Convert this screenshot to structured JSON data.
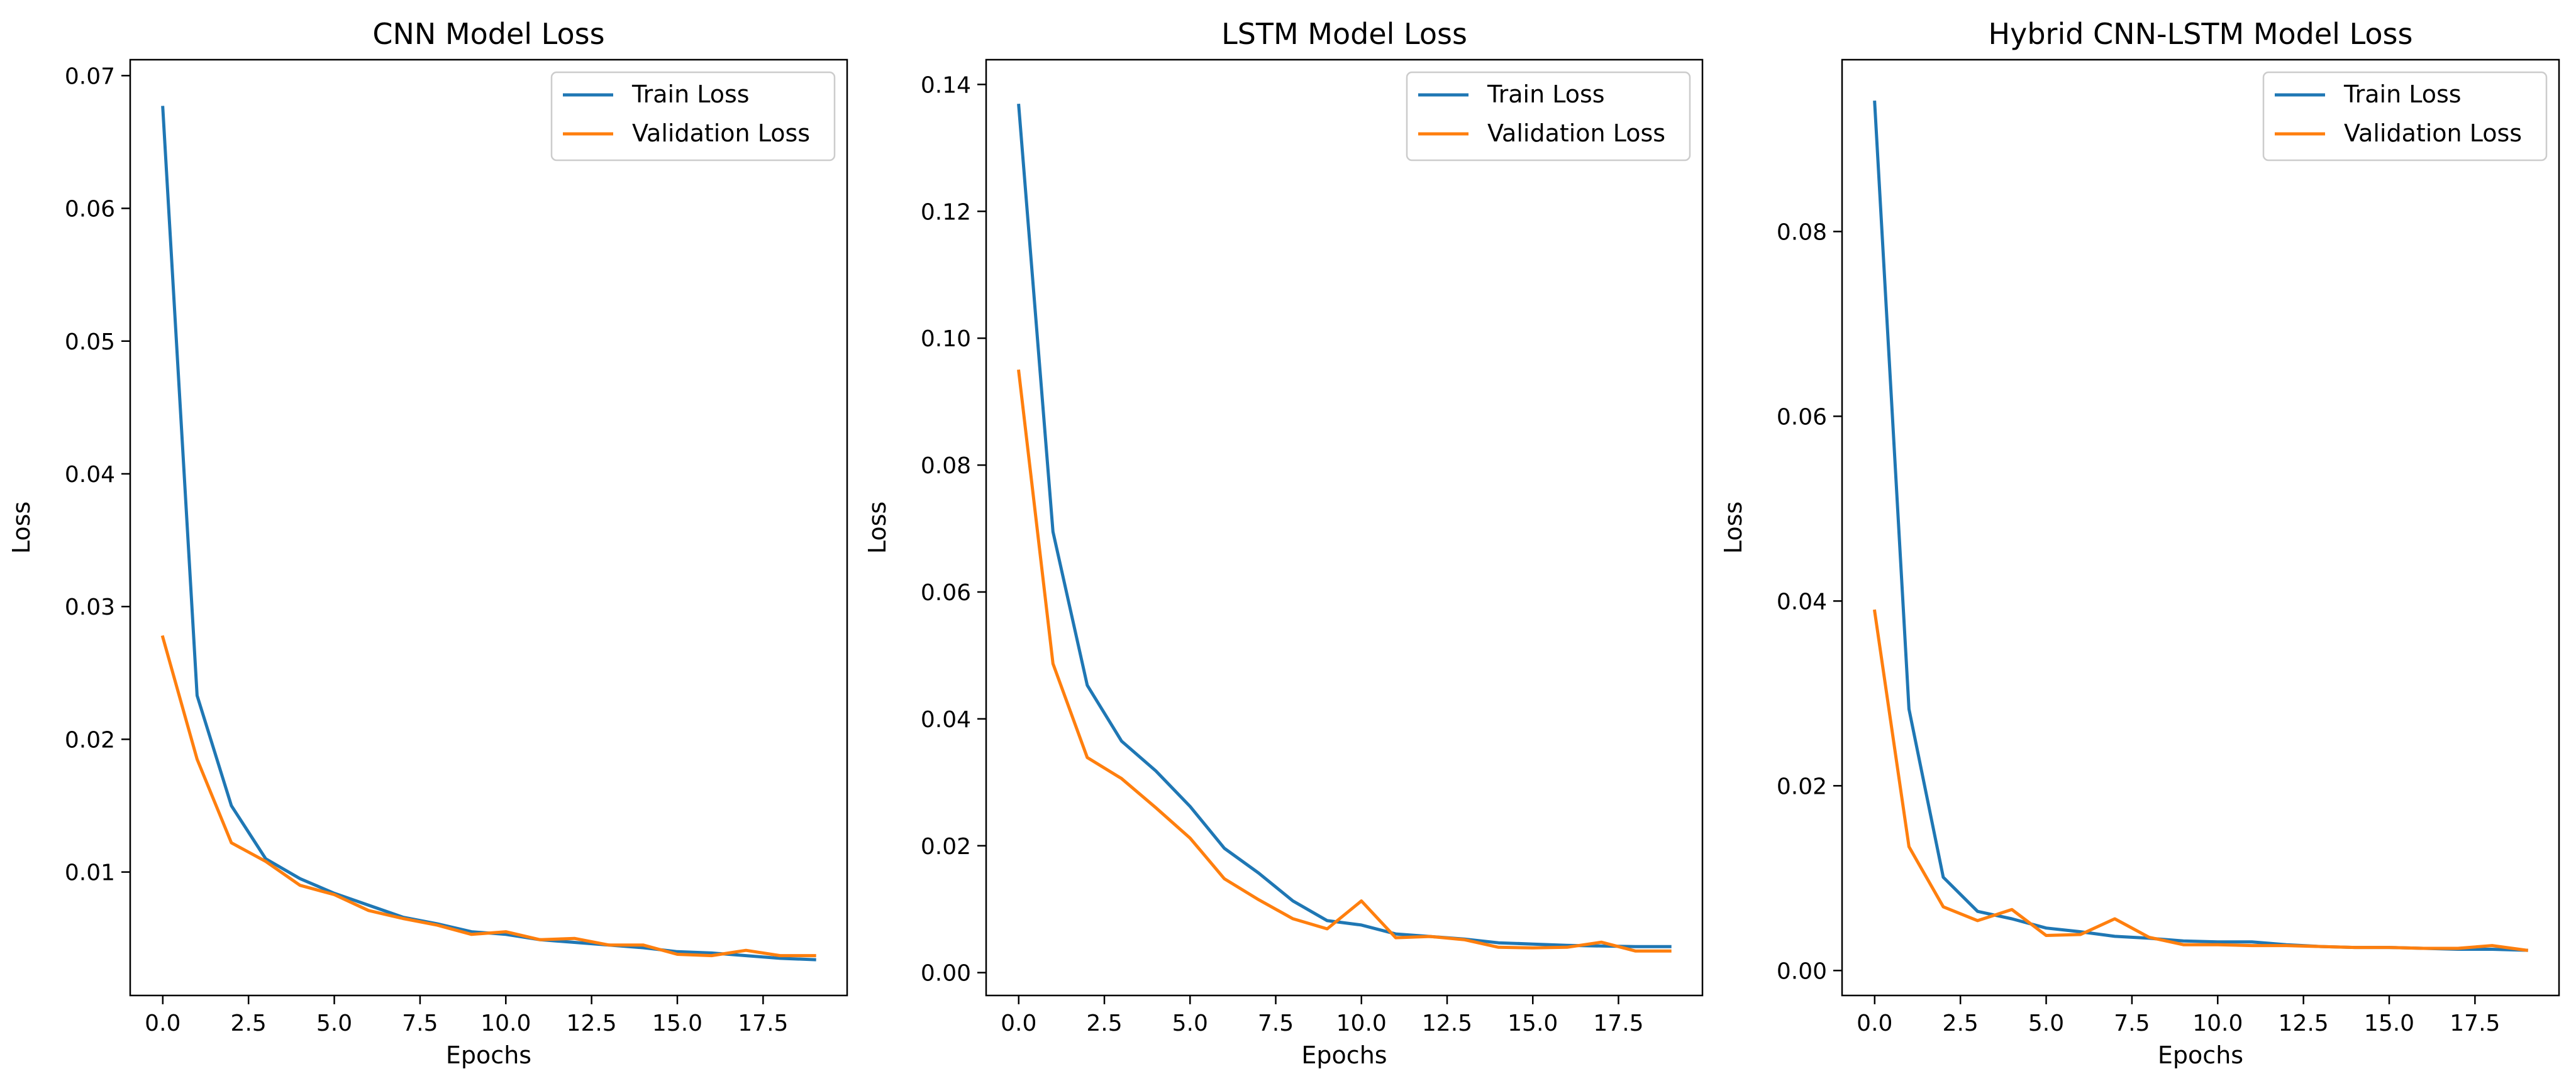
{
  "colors": {
    "train": "#1f77b4",
    "validation": "#ff7f0e"
  },
  "chart_data": [
    {
      "type": "line",
      "title": "CNN Model Loss",
      "xlabel": "Epochs",
      "ylabel": "Loss",
      "xlim": [
        -0.95,
        19.95
      ],
      "ylim": [
        0.0007,
        0.0712
      ],
      "xticks": [
        "0.0",
        "2.5",
        "5.0",
        "7.5",
        "10.0",
        "12.5",
        "15.0",
        "17.5"
      ],
      "xtick_values": [
        0,
        2.5,
        5,
        7.5,
        10,
        12.5,
        15,
        17.5
      ],
      "yticks": [
        "0.01",
        "0.02",
        "0.03",
        "0.04",
        "0.05",
        "0.06",
        "0.07"
      ],
      "ytick_values": [
        0.01,
        0.02,
        0.03,
        0.04,
        0.05,
        0.06,
        0.07
      ],
      "grid": false,
      "legend_position": "top-right",
      "x": [
        0,
        1,
        2,
        3,
        4,
        5,
        6,
        7,
        8,
        9,
        10,
        11,
        12,
        13,
        14,
        15,
        16,
        17,
        18,
        19
      ],
      "series": [
        {
          "name": "Train Loss",
          "color": "#1f77b4",
          "values": [
            0.0676,
            0.0233,
            0.015,
            0.011,
            0.0095,
            0.0084,
            0.0075,
            0.0066,
            0.0061,
            0.0055,
            0.0053,
            0.0049,
            0.0047,
            0.0045,
            0.0043,
            0.004,
            0.0039,
            0.0037,
            0.0035,
            0.0034
          ]
        },
        {
          "name": "Validation Loss",
          "color": "#ff7f0e",
          "values": [
            0.0277,
            0.0185,
            0.0122,
            0.0108,
            0.009,
            0.0083,
            0.0071,
            0.0065,
            0.006,
            0.0053,
            0.0055,
            0.0049,
            0.005,
            0.0045,
            0.0045,
            0.0038,
            0.0037,
            0.0041,
            0.0037,
            0.0037
          ]
        }
      ]
    },
    {
      "type": "line",
      "title": "LSTM Model Loss",
      "xlabel": "Epochs",
      "ylabel": "Loss",
      "xlim": [
        -0.95,
        19.95
      ],
      "ylim": [
        -0.0036,
        0.1439
      ],
      "xticks": [
        "0.0",
        "2.5",
        "5.0",
        "7.5",
        "10.0",
        "12.5",
        "15.0",
        "17.5"
      ],
      "xtick_values": [
        0,
        2.5,
        5,
        7.5,
        10,
        12.5,
        15,
        17.5
      ],
      "yticks": [
        "0.00",
        "0.02",
        "0.04",
        "0.06",
        "0.08",
        "0.10",
        "0.12",
        "0.14"
      ],
      "ytick_values": [
        0,
        0.02,
        0.04,
        0.06,
        0.08,
        0.1,
        0.12,
        0.14
      ],
      "grid": false,
      "legend_position": "top-right",
      "x": [
        0,
        1,
        2,
        3,
        4,
        5,
        6,
        7,
        8,
        9,
        10,
        11,
        12,
        13,
        14,
        15,
        16,
        17,
        18,
        19
      ],
      "series": [
        {
          "name": "Train Loss",
          "color": "#1f77b4",
          "values": [
            0.1367,
            0.0695,
            0.0453,
            0.0365,
            0.0318,
            0.0262,
            0.0196,
            0.0157,
            0.0113,
            0.0082,
            0.0075,
            0.0061,
            0.0057,
            0.0053,
            0.0047,
            0.0045,
            0.0043,
            0.0042,
            0.0041,
            0.0041
          ]
        },
        {
          "name": "Validation Loss",
          "color": "#ff7f0e",
          "values": [
            0.0948,
            0.0487,
            0.0339,
            0.0306,
            0.026,
            0.0212,
            0.0148,
            0.0115,
            0.0085,
            0.0069,
            0.0113,
            0.0055,
            0.0057,
            0.0052,
            0.004,
            0.0039,
            0.004,
            0.0048,
            0.0034,
            0.0034
          ]
        }
      ]
    },
    {
      "type": "line",
      "title": "Hybrid CNN-LSTM Model Loss",
      "xlabel": "Epochs",
      "ylabel": "Loss",
      "xlim": [
        -0.95,
        19.95
      ],
      "ylim": [
        -0.0027,
        0.0986
      ],
      "xticks": [
        "0.0",
        "2.5",
        "5.0",
        "7.5",
        "10.0",
        "12.5",
        "15.0",
        "17.5"
      ],
      "xtick_values": [
        0,
        2.5,
        5,
        7.5,
        10,
        12.5,
        15,
        17.5
      ],
      "yticks": [
        "0.00",
        "0.02",
        "0.04",
        "0.06",
        "0.08"
      ],
      "ytick_values": [
        0,
        0.02,
        0.04,
        0.06,
        0.08
      ],
      "grid": false,
      "legend_position": "top-right",
      "x": [
        0,
        1,
        2,
        3,
        4,
        5,
        6,
        7,
        8,
        9,
        10,
        11,
        12,
        13,
        14,
        15,
        16,
        17,
        18,
        19
      ],
      "series": [
        {
          "name": "Train Loss",
          "color": "#1f77b4",
          "values": [
            0.094,
            0.0283,
            0.0101,
            0.0064,
            0.0056,
            0.0046,
            0.0042,
            0.0037,
            0.0035,
            0.0032,
            0.0031,
            0.0031,
            0.0028,
            0.0026,
            0.0025,
            0.0025,
            0.0024,
            0.0023,
            0.0023,
            0.0022
          ]
        },
        {
          "name": "Validation Loss",
          "color": "#ff7f0e",
          "values": [
            0.0389,
            0.0134,
            0.0069,
            0.0054,
            0.0066,
            0.0038,
            0.0039,
            0.0056,
            0.0036,
            0.0028,
            0.0028,
            0.0027,
            0.0027,
            0.0026,
            0.0025,
            0.0025,
            0.0024,
            0.0024,
            0.0027,
            0.0022
          ]
        }
      ]
    }
  ]
}
